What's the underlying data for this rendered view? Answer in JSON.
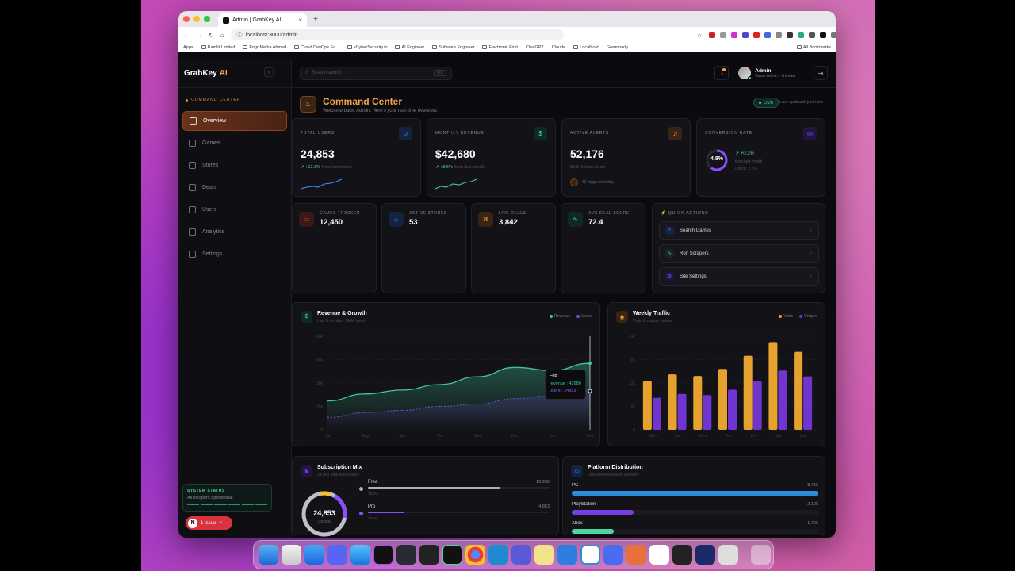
{
  "browser": {
    "tab_title": "Admin | GrabKey AI",
    "url": "localhost:3000/admin",
    "bookmarks": [
      "Apps",
      "Ramlit Limited",
      "Engr Mejba Ahmed",
      "Cloud DevOps En...",
      "xCyberSecurity.io",
      "AI Engineer",
      "Software Engineer",
      "Electronic First",
      "ChatGPT",
      "Claude",
      "Localhost",
      "Grammarly",
      "All Bookmarks"
    ]
  },
  "brand": {
    "name": "GrabKey",
    "suffix": "AI"
  },
  "sidebar": {
    "section": "COMMAND CENTER",
    "items": [
      {
        "label": "Overview",
        "active": true
      },
      {
        "label": "Games"
      },
      {
        "label": "Stores"
      },
      {
        "label": "Deals"
      },
      {
        "label": "Users"
      },
      {
        "label": "Analytics"
      },
      {
        "label": "Settings"
      }
    ],
    "system_status": {
      "title": "SYSTEM STATUS",
      "text": "All scrapers operational"
    },
    "issue": {
      "letter": "N",
      "label": "1 Issue"
    }
  },
  "topbar": {
    "search_placeholder": "Search admin...",
    "shortcut": "⌘K",
    "user_name": "Admin",
    "user_role": "Super Admin · ahmeta"
  },
  "header": {
    "title": "Command Center",
    "subtitle": "Welcome back, Admin. Here's your real-time overview.",
    "live": "LIVE",
    "updated": "Last updated: just now"
  },
  "stats": [
    {
      "label": "TOTAL USERS",
      "value": "24,853",
      "change": "+12.3%",
      "note": "from last month",
      "color": "#4a8cff"
    },
    {
      "label": "MONTHLY REVENUE",
      "value": "$42,680",
      "change": "+8.5%",
      "note": "from last month",
      "color": "#4ed6a2"
    },
    {
      "label": "ACTIVE ALERTS",
      "value": "52,176",
      "change": "",
      "note": "89,341 total alerts",
      "extra": "12 triggered today",
      "color": "#f4a34a"
    },
    {
      "label": "CONVERSION RATE",
      "value": "4.8%",
      "change": "+0.3%",
      "note": "from last month",
      "extra": "Churn: 2.1%",
      "color": "#8a4dff"
    }
  ],
  "mini_stats": [
    {
      "label": "GAMES TRACKED",
      "value": "12,450",
      "color": "#e8553b"
    },
    {
      "label": "ACTIVE STORES",
      "value": "53",
      "color": "#4a8cff"
    },
    {
      "label": "LIVE DEALS",
      "value": "3,842",
      "color": "#f4a34a"
    },
    {
      "label": "AVG DEAL SCORE",
      "value": "72.4",
      "color": "#4ed6a2"
    }
  ],
  "quick_actions": {
    "title": "QUICK ACTIONS",
    "items": [
      {
        "label": "Search Games",
        "color": "#4a8cff"
      },
      {
        "label": "Run Scrapers",
        "color": "#4ed6a2"
      },
      {
        "label": "Site Settings",
        "color": "#8a4dff"
      }
    ]
  },
  "revenue_chart": {
    "title": "Revenue & Growth",
    "subtitle": "Last 8 months · MoM trend",
    "legend": [
      "Revenue",
      "Users"
    ],
    "tooltip": {
      "month": "Feb",
      "revenue_label": "revenue : 42680",
      "users_label": "users : 24853"
    }
  },
  "traffic_chart": {
    "title": "Weekly Traffic",
    "subtitle": "Visits & unique visitors",
    "legend": [
      "Visits",
      "Unique"
    ]
  },
  "subscription": {
    "title": "Subscription Mix",
    "subtitle": "24,853 total subscribers",
    "center_value": "24,853",
    "center_label": "USERS",
    "plans": [
      {
        "name": "Free",
        "count": "18,200",
        "pct": "73.2%",
        "fill": 0.73,
        "color": "#b0b0ba"
      },
      {
        "name": "Pro",
        "count": "4,853",
        "pct": "19.5%",
        "fill": 0.2,
        "color": "#8a4dff"
      }
    ]
  },
  "platforms": {
    "title": "Platform Distribution",
    "subtitle": "User preferences by platform",
    "items": [
      {
        "name": "PC",
        "count": "8,450",
        "fill": 1.0,
        "color": "#2a8fd8"
      },
      {
        "name": "PlayStation",
        "count": "2,100",
        "fill": 0.25,
        "color": "#7a3fe0"
      },
      {
        "name": "Xbox",
        "count": "1,400",
        "fill": 0.17,
        "color": "#4ed6a2"
      }
    ]
  },
  "chart_data": [
    {
      "type": "area",
      "title": "Revenue & Growth",
      "x": [
        "Jul",
        "Aug",
        "Sep",
        "Oct",
        "Nov",
        "Dec",
        "Jan",
        "Feb"
      ],
      "yticks": [
        "60k",
        "45k",
        "30k",
        "15k",
        "0"
      ],
      "ylim": [
        0,
        60000
      ],
      "series": [
        {
          "name": "Revenue",
          "color": "#3fc79a",
          "values": [
            18500,
            23000,
            25500,
            29000,
            34000,
            40000,
            38000,
            42680
          ]
        },
        {
          "name": "Users",
          "color": "#7a4dd8",
          "values": [
            8000,
            11000,
            12500,
            15000,
            16500,
            20000,
            22000,
            24853
          ]
        }
      ]
    },
    {
      "type": "bar",
      "title": "Weekly Traffic",
      "categories": [
        "Mon",
        "Tue",
        "Wed",
        "Thu",
        "Fri",
        "Sat",
        "Sun"
      ],
      "yticks": [
        "24k",
        "18k",
        "12k",
        "6k",
        "0"
      ],
      "ylim": [
        0,
        24000
      ],
      "series": [
        {
          "name": "Visits",
          "color": "#e6a22e",
          "values": [
            12500,
            14200,
            13800,
            15600,
            19000,
            22500,
            20000
          ]
        },
        {
          "name": "Unique",
          "color": "#7034d0",
          "values": [
            8200,
            9200,
            8900,
            10300,
            12500,
            15200,
            13700
          ]
        }
      ]
    }
  ]
}
